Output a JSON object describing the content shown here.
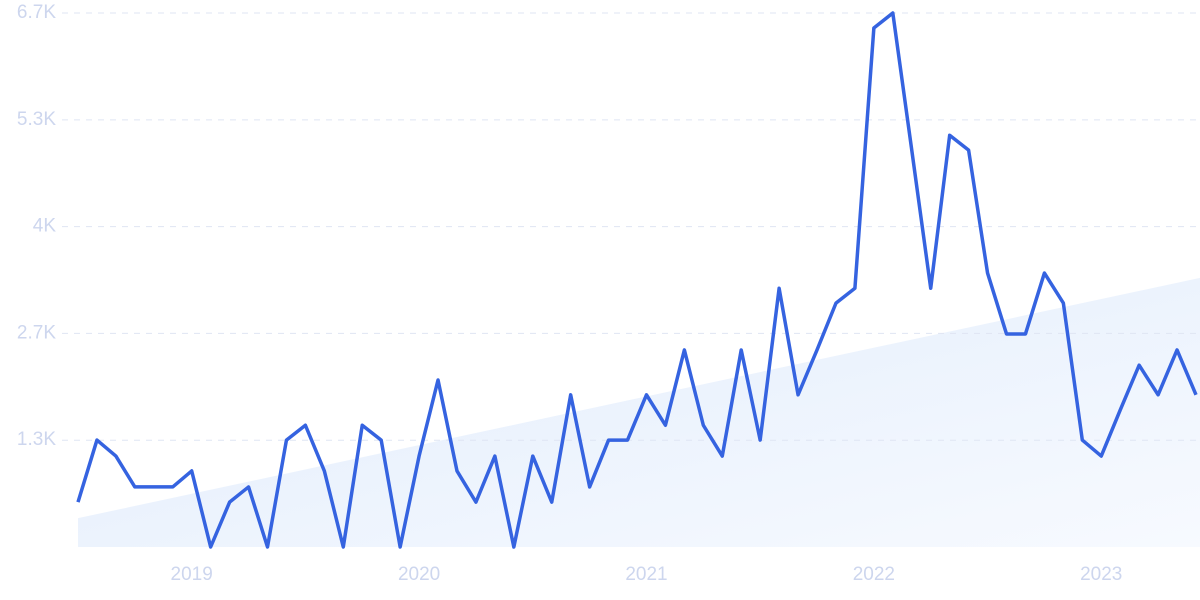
{
  "chart_data": {
    "type": "line",
    "categories": [
      null,
      null,
      null,
      null,
      null,
      null,
      "2019",
      null,
      null,
      null,
      null,
      null,
      null,
      null,
      null,
      null,
      null,
      null,
      "2020",
      null,
      null,
      null,
      null,
      null,
      null,
      null,
      null,
      null,
      null,
      null,
      "2021",
      null,
      null,
      null,
      null,
      null,
      null,
      null,
      null,
      null,
      null,
      null,
      "2022",
      null,
      null,
      null,
      null,
      null,
      null,
      null,
      null,
      null,
      null,
      null,
      "2023",
      null,
      null,
      null,
      null,
      null
    ],
    "series": [
      {
        "color": "#3563e0",
        "values": [
          560,
          1335,
          1135,
          750,
          750,
          750,
          950,
          0,
          560,
          750,
          0,
          1335,
          1520,
          950,
          0,
          1520,
          1335,
          0,
          1135,
          2085,
          950,
          560,
          1135,
          0,
          1135,
          560,
          1900,
          750,
          1335,
          1335,
          1900,
          1520,
          2460,
          1520,
          1135,
          2460,
          1335,
          3230,
          1900,
          2460,
          3045,
          3230,
          6480,
          6667,
          4955,
          3230,
          5140,
          4955,
          3420,
          2660,
          2660,
          3420,
          3045,
          1335,
          1135,
          1710,
          2270,
          1900,
          2460,
          1900
        ]
      }
    ],
    "trend": {
      "color": "#e3edfb",
      "values": [
        360,
        3360
      ]
    },
    "ylim": [
      0,
      6667
    ],
    "yticks": [
      {
        "value": 1333,
        "label": "1.3K"
      },
      {
        "value": 2667,
        "label": "2.7K"
      },
      {
        "value": 4000,
        "label": "4K"
      },
      {
        "value": 5333,
        "label": "5.3K"
      },
      {
        "value": 6667,
        "label": "6.7K"
      }
    ],
    "grid": true
  }
}
